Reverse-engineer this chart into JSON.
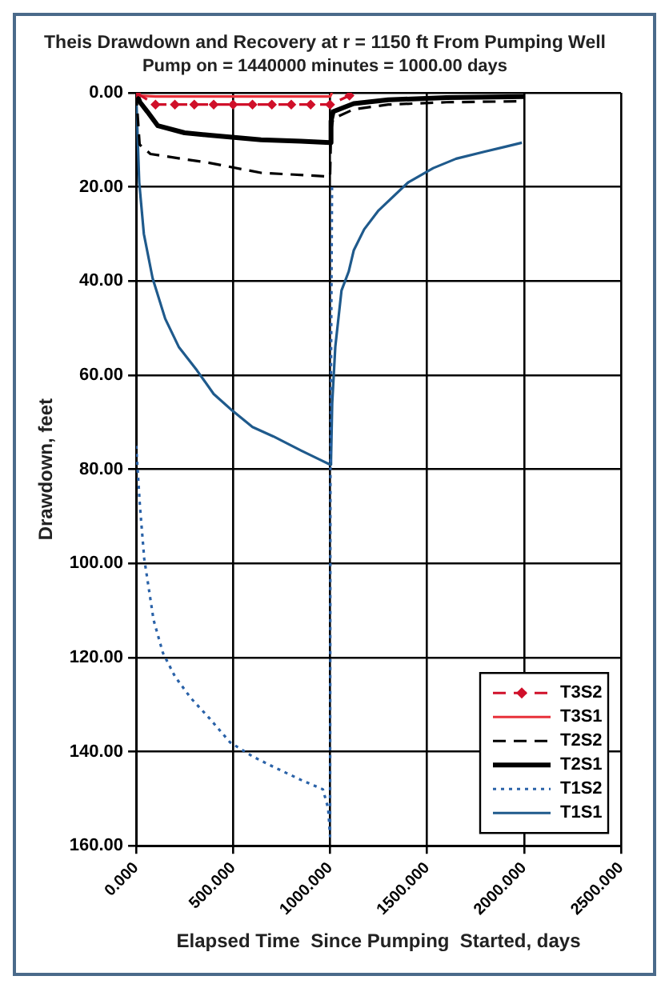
{
  "chart_data": {
    "type": "line",
    "title": "Theis Drawdown and Recovery at r = 1150 ft From Pumping Well",
    "subtitle": "Pump on = 1440000 minutes = 1000.00 days",
    "xlabel": "Elapsed Time  Since Pumping  Started, days",
    "ylabel": "Drawdown, feet",
    "xlim": [
      0,
      2500
    ],
    "xticks": [
      {
        "value": 0,
        "label": "0.000"
      },
      {
        "value": 500,
        "label": "500.000"
      },
      {
        "value": 1000,
        "label": "1000.000"
      },
      {
        "value": 1500,
        "label": "1500.000"
      },
      {
        "value": 2000,
        "label": "2000.000"
      },
      {
        "value": 2500,
        "label": "2500.000"
      }
    ],
    "ylim": [
      160,
      0
    ],
    "yticks": [
      {
        "value": 0,
        "label": "0.00"
      },
      {
        "value": 20,
        "label": "20.00"
      },
      {
        "value": 40,
        "label": "40.00"
      },
      {
        "value": 60,
        "label": "60.00"
      },
      {
        "value": 80,
        "label": "80.00"
      },
      {
        "value": 100,
        "label": "100.00"
      },
      {
        "value": 120,
        "label": "120.00"
      },
      {
        "value": 140,
        "label": "140.00"
      },
      {
        "value": 160,
        "label": "160.00"
      }
    ],
    "grid": true,
    "legend": "bottom right",
    "series": [
      {
        "name": "T3S2",
        "color": "#d0102a",
        "line_style": "dashed",
        "marker": "diamond",
        "x": [
          0,
          100,
          200,
          300,
          400,
          500,
          600,
          700,
          800,
          900,
          1000,
          1100
        ],
        "values": [
          0,
          2.5,
          2.5,
          2.5,
          2.5,
          2.5,
          2.5,
          2.5,
          2.5,
          2.5,
          2.5,
          0.6
        ]
      },
      {
        "name": "T3S1",
        "color": "#e8303a",
        "line_style": "solid",
        "x": [
          0,
          20,
          100,
          500,
          1000,
          1010
        ],
        "values": [
          0,
          0.6,
          0.8,
          0.8,
          0.8,
          0
        ]
      },
      {
        "name": "T2S2",
        "color": "#000000",
        "line_style": "dashed",
        "x": [
          0,
          10,
          18,
          74,
          378,
          644,
          1000,
          1005,
          1016,
          1122,
          1300,
          1600,
          2000
        ],
        "values": [
          0,
          6,
          11,
          13,
          14.9,
          17,
          17.8,
          8,
          5.5,
          3.5,
          2.5,
          2,
          1.8
        ]
      },
      {
        "name": "T2S1",
        "color": "#000000",
        "line_style": "solid",
        "x": [
          0,
          20,
          58,
          112,
          250,
          378,
          644,
          850,
          1000,
          1005,
          1016,
          1122,
          1300,
          1600,
          2000
        ],
        "values": [
          0,
          2,
          4,
          7,
          8.5,
          9,
          10,
          10.3,
          10.6,
          6,
          4,
          2.3,
          1.5,
          1,
          0.8
        ]
      },
      {
        "name": "T1S2",
        "color": "#2a62a8",
        "line_style": "dotted",
        "x": [
          0,
          20,
          42,
          90,
          138,
          200,
          282,
          380,
          484,
          600,
          697,
          850,
          963,
          990,
          1000,
          1002,
          1010
        ],
        "values": [
          75,
          88,
          99,
          112,
          119,
          124,
          128.6,
          133,
          138,
          141,
          143,
          146,
          148,
          152,
          158,
          80,
          20
        ]
      },
      {
        "name": "T1S1",
        "color": "#1f5a8c",
        "line_style": "solid",
        "x": [
          0,
          16,
          40,
          85,
          150,
          220,
          314,
          400,
          495,
          600,
          707,
          850,
          950,
          1000,
          1005,
          1011,
          1027,
          1059,
          1096,
          1122,
          1176,
          1250,
          1404,
          1532,
          1650,
          1798,
          1900,
          1989
        ],
        "values": [
          0,
          19,
          30,
          39.4,
          48,
          54,
          59,
          64,
          67.5,
          71,
          73,
          76,
          78,
          79,
          78,
          66,
          54,
          42,
          38,
          33.5,
          29,
          25,
          19,
          16,
          14,
          12.5,
          11.5,
          10.6
        ]
      }
    ]
  }
}
